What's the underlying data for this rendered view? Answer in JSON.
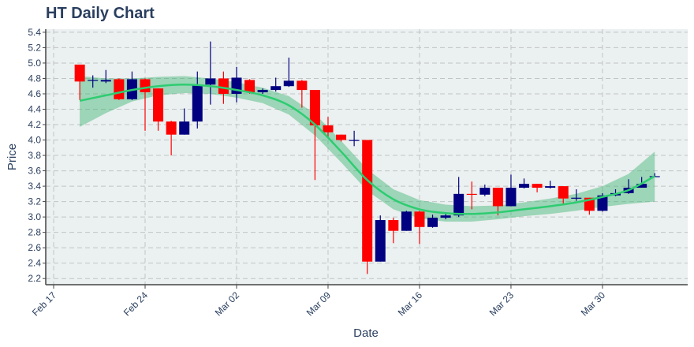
{
  "chart_data": {
    "type": "candlestick",
    "title": "HT Daily Chart",
    "xlabel": "Date",
    "ylabel": "Price",
    "ylim": [
      2.12,
      5.44
    ],
    "y_ticks": [
      2.2,
      2.4,
      2.6,
      2.8,
      3.0,
      3.2,
      3.4,
      3.6,
      3.8,
      4.0,
      4.2,
      4.4,
      4.6,
      4.8,
      5.0,
      5.2,
      5.4
    ],
    "x_ticks": [
      {
        "label": "Feb 17",
        "day": 0
      },
      {
        "label": "Feb 24",
        "day": 7
      },
      {
        "label": "Mar 02",
        "day": 14
      },
      {
        "label": "Mar 09",
        "day": 21
      },
      {
        "label": "Mar 16",
        "day": 28
      },
      {
        "label": "Mar 23",
        "day": 35
      },
      {
        "label": "Mar 30",
        "day": 42
      }
    ],
    "grid": true,
    "colors": {
      "increasing": "#000080",
      "decreasing": "#ff0000",
      "trend_line": "#2ecc71",
      "band_fill": "#3cb371",
      "plot_bg": "#ebf0f0",
      "grid": "#c0c4c4",
      "axis": "#444444"
    },
    "candles": [
      {
        "date": "Feb 19",
        "open": 4.98,
        "high": 4.98,
        "low": 4.52,
        "close": 4.76
      },
      {
        "date": "Feb 20",
        "open": 4.78,
        "high": 4.84,
        "low": 4.68,
        "close": 4.78
      },
      {
        "date": "Feb 21",
        "open": 4.76,
        "high": 4.91,
        "low": 4.74,
        "close": 4.78
      },
      {
        "date": "Feb 22",
        "open": 4.79,
        "high": 4.8,
        "low": 4.52,
        "close": 4.53
      },
      {
        "date": "Feb 23",
        "open": 4.53,
        "high": 4.89,
        "low": 4.52,
        "close": 4.79
      },
      {
        "date": "Feb 24",
        "open": 4.79,
        "high": 4.8,
        "low": 4.12,
        "close": 4.62
      },
      {
        "date": "Feb 25",
        "open": 4.67,
        "high": 4.67,
        "low": 4.12,
        "close": 4.24
      },
      {
        "date": "Feb 26",
        "open": 4.24,
        "high": 4.25,
        "low": 3.8,
        "close": 4.07
      },
      {
        "date": "Feb 27",
        "open": 4.07,
        "high": 4.41,
        "low": 4.07,
        "close": 4.24
      },
      {
        "date": "Feb 28",
        "open": 4.24,
        "high": 4.89,
        "low": 4.15,
        "close": 4.72
      },
      {
        "date": "Feb 29",
        "open": 4.72,
        "high": 5.28,
        "low": 4.46,
        "close": 4.8
      },
      {
        "date": "Mar 01",
        "open": 4.8,
        "high": 4.89,
        "low": 4.47,
        "close": 4.6
      },
      {
        "date": "Mar 02",
        "open": 4.6,
        "high": 4.95,
        "low": 4.49,
        "close": 4.81
      },
      {
        "date": "Mar 03",
        "open": 4.78,
        "high": 4.79,
        "low": 4.6,
        "close": 4.62
      },
      {
        "date": "Mar 04",
        "open": 4.62,
        "high": 4.67,
        "low": 4.6,
        "close": 4.65
      },
      {
        "date": "Mar 05",
        "open": 4.65,
        "high": 4.81,
        "low": 4.63,
        "close": 4.7
      },
      {
        "date": "Mar 06",
        "open": 4.7,
        "high": 5.07,
        "low": 4.69,
        "close": 4.77
      },
      {
        "date": "Mar 07",
        "open": 4.77,
        "high": 4.78,
        "low": 4.42,
        "close": 4.65
      },
      {
        "date": "Mar 08",
        "open": 4.65,
        "high": 4.65,
        "low": 3.48,
        "close": 4.19
      },
      {
        "date": "Mar 09",
        "open": 4.19,
        "high": 4.3,
        "low": 4.03,
        "close": 4.1
      },
      {
        "date": "Mar 10",
        "open": 4.07,
        "high": 4.07,
        "low": 3.98,
        "close": 4.0
      },
      {
        "date": "Mar 11",
        "open": 4.0,
        "high": 4.12,
        "low": 3.92,
        "close": 4.0
      },
      {
        "date": "Mar 12",
        "open": 4.0,
        "high": 4.0,
        "low": 2.26,
        "close": 2.42
      },
      {
        "date": "Mar 13",
        "open": 2.42,
        "high": 3.02,
        "low": 2.42,
        "close": 2.96
      },
      {
        "date": "Mar 14",
        "open": 2.96,
        "high": 2.99,
        "low": 2.66,
        "close": 2.82
      },
      {
        "date": "Mar 15",
        "open": 2.82,
        "high": 3.08,
        "low": 2.82,
        "close": 3.07
      },
      {
        "date": "Mar 16",
        "open": 3.07,
        "high": 3.08,
        "low": 2.65,
        "close": 2.87
      },
      {
        "date": "Mar 17",
        "open": 2.87,
        "high": 3.03,
        "low": 2.86,
        "close": 2.99
      },
      {
        "date": "Mar 18",
        "open": 2.99,
        "high": 3.06,
        "low": 2.97,
        "close": 3.02
      },
      {
        "date": "Mar 19",
        "open": 3.02,
        "high": 3.52,
        "low": 3.0,
        "close": 3.3
      },
      {
        "date": "Mar 20",
        "open": 3.3,
        "high": 3.46,
        "low": 3.1,
        "close": 3.29
      },
      {
        "date": "Mar 21",
        "open": 3.29,
        "high": 3.42,
        "low": 3.27,
        "close": 3.38
      },
      {
        "date": "Mar 22",
        "open": 3.38,
        "high": 3.38,
        "low": 3.02,
        "close": 3.14
      },
      {
        "date": "Mar 23",
        "open": 3.14,
        "high": 3.55,
        "low": 3.14,
        "close": 3.38
      },
      {
        "date": "Mar 24",
        "open": 3.38,
        "high": 3.5,
        "low": 3.37,
        "close": 3.43
      },
      {
        "date": "Mar 25",
        "open": 3.43,
        "high": 3.43,
        "low": 3.32,
        "close": 3.38
      },
      {
        "date": "Mar 26",
        "open": 3.38,
        "high": 3.47,
        "low": 3.37,
        "close": 3.4
      },
      {
        "date": "Mar 27",
        "open": 3.4,
        "high": 3.4,
        "low": 3.17,
        "close": 3.24
      },
      {
        "date": "Mar 28",
        "open": 3.24,
        "high": 3.36,
        "low": 3.21,
        "close": 3.25
      },
      {
        "date": "Mar 29",
        "open": 3.25,
        "high": 3.25,
        "low": 3.03,
        "close": 3.08
      },
      {
        "date": "Mar 30",
        "open": 3.08,
        "high": 3.31,
        "low": 3.07,
        "close": 3.28
      },
      {
        "date": "Mar 31",
        "open": 3.28,
        "high": 3.36,
        "low": 3.27,
        "close": 3.31
      },
      {
        "date": "Apr 01",
        "open": 3.31,
        "high": 3.49,
        "low": 3.3,
        "close": 3.38
      },
      {
        "date": "Apr 02",
        "open": 3.38,
        "high": 3.52,
        "low": 3.38,
        "close": 3.43
      },
      {
        "date": "Apr 03",
        "open": 3.53,
        "high": 3.57,
        "low": 3.52,
        "close": 3.53
      }
    ],
    "trend_line": [
      {
        "date": "Feb 19",
        "value": 4.51,
        "upper": 4.83,
        "lower": 4.17
      },
      {
        "date": "Feb 21",
        "value": 4.58,
        "upper": 4.8,
        "lower": 4.35
      },
      {
        "date": "Feb 23",
        "value": 4.65,
        "upper": 4.8,
        "lower": 4.5
      },
      {
        "date": "Feb 25",
        "value": 4.7,
        "upper": 4.82,
        "lower": 4.58
      },
      {
        "date": "Feb 27",
        "value": 4.72,
        "upper": 4.83,
        "lower": 4.61
      },
      {
        "date": "Feb 29",
        "value": 4.7,
        "upper": 4.8,
        "lower": 4.6
      },
      {
        "date": "Mar 02",
        "value": 4.65,
        "upper": 4.75,
        "lower": 4.55
      },
      {
        "date": "Mar 04",
        "value": 4.58,
        "upper": 4.68,
        "lower": 4.48
      },
      {
        "date": "Mar 06",
        "value": 4.45,
        "upper": 4.57,
        "lower": 4.33
      },
      {
        "date": "Mar 08",
        "value": 4.2,
        "upper": 4.34,
        "lower": 4.06
      },
      {
        "date": "Mar 10",
        "value": 3.85,
        "upper": 3.99,
        "lower": 3.71
      },
      {
        "date": "Mar 12",
        "value": 3.48,
        "upper": 3.62,
        "lower": 3.34
      },
      {
        "date": "Mar 14",
        "value": 3.23,
        "upper": 3.36,
        "lower": 3.1
      },
      {
        "date": "Mar 16",
        "value": 3.1,
        "upper": 3.22,
        "lower": 2.98
      },
      {
        "date": "Mar 18",
        "value": 3.05,
        "upper": 3.16,
        "lower": 2.94
      },
      {
        "date": "Mar 20",
        "value": 3.04,
        "upper": 3.14,
        "lower": 2.94
      },
      {
        "date": "Mar 22",
        "value": 3.06,
        "upper": 3.15,
        "lower": 2.97
      },
      {
        "date": "Mar 24",
        "value": 3.1,
        "upper": 3.19,
        "lower": 3.01
      },
      {
        "date": "Mar 26",
        "value": 3.14,
        "upper": 3.24,
        "lower": 3.04
      },
      {
        "date": "Mar 28",
        "value": 3.19,
        "upper": 3.3,
        "lower": 3.08
      },
      {
        "date": "Mar 30",
        "value": 3.26,
        "upper": 3.4,
        "lower": 3.13
      },
      {
        "date": "Apr 01",
        "value": 3.35,
        "upper": 3.56,
        "lower": 3.17
      },
      {
        "date": "Apr 03",
        "value": 3.53,
        "upper": 3.85,
        "lower": 3.2
      }
    ]
  }
}
